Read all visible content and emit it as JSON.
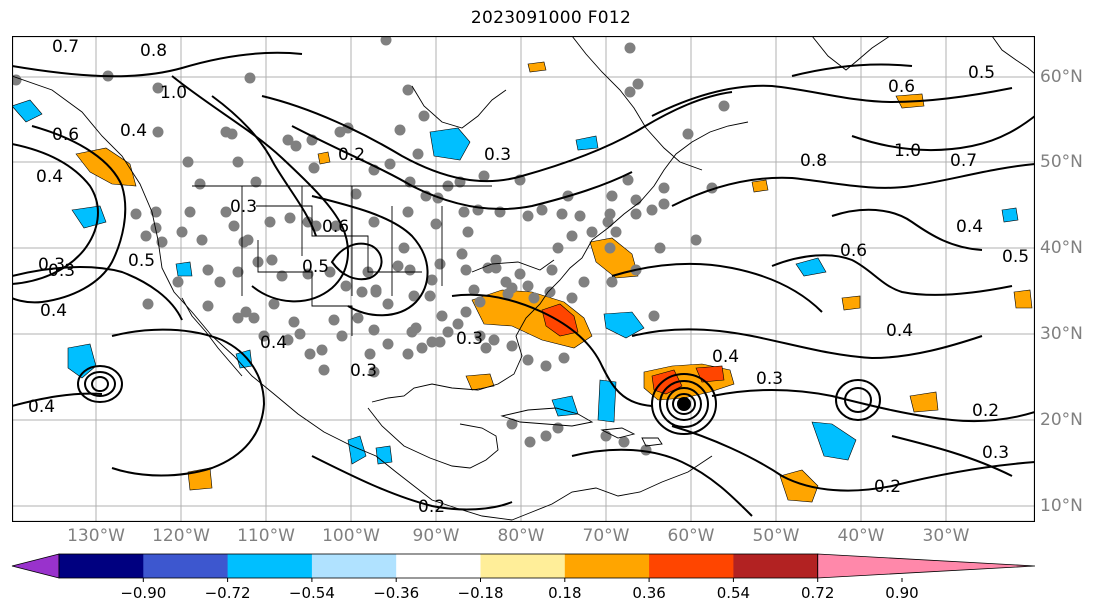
{
  "title": "2023091000 F012",
  "lon_labels": [
    "130°W",
    "120°W",
    "110°W",
    "100°W",
    "90°W",
    "80°W",
    "70°W",
    "60°W",
    "50°W",
    "40°W",
    "30°W"
  ],
  "lat_labels": [
    "60°N",
    "50°N",
    "40°N",
    "30°N",
    "20°N",
    "10°N"
  ],
  "contour_labels": [
    "0.7",
    "0.8",
    "1.0",
    "0.6",
    "0.4",
    "0.5",
    "0.3",
    "0.2",
    "0.6",
    "0.5",
    "0.6",
    "0.8",
    "1.0",
    "0.7",
    "0.6",
    "0.4",
    "0.5",
    "0.3",
    "0.4",
    "0.4",
    "0.3",
    "0.3",
    "0.4",
    "0.4",
    "0.3",
    "0.2",
    "0.3",
    "0.2",
    "0.3",
    "0.2",
    "0.3",
    "0.4",
    "0.4",
    "0.5"
  ],
  "colorbar": {
    "ticks": [
      "−0.90",
      "−0.72",
      "−0.54",
      "−0.36",
      "−0.18",
      "0.18",
      "0.36",
      "0.54",
      "0.72",
      "0.90"
    ],
    "colors": [
      "#9932cc",
      "#000080",
      "#3d57cf",
      "#00bfff",
      "#b0e2ff",
      "#ffffff",
      "#ffee99",
      "#ffa500",
      "#ff4500",
      "#b22222",
      "#ff88aa"
    ]
  },
  "legend_colors": {
    "dots": "#808080",
    "positive_fill": "#ffa500",
    "strong_positive_fill": "#ff4500",
    "negative_fill": "#00bfff",
    "contours": "#000000",
    "grid": "#b0b0b0"
  }
}
